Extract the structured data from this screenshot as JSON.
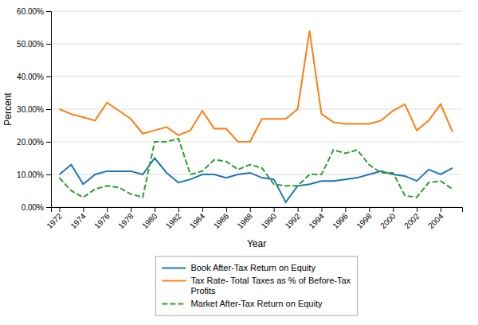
{
  "chart_data": {
    "type": "line",
    "xlabel": "Year",
    "ylabel": "Percent",
    "x": [
      1972,
      1973,
      1974,
      1975,
      1976,
      1977,
      1978,
      1979,
      1980,
      1981,
      1982,
      1983,
      1984,
      1985,
      1986,
      1987,
      1988,
      1989,
      1990,
      1991,
      1992,
      1993,
      1994,
      1995,
      1996,
      1997,
      1998,
      1999,
      2000,
      2001,
      2002,
      2003,
      2004,
      2005
    ],
    "series": [
      {
        "name": "Book After-Tax Return on Equity",
        "line_style": "solid",
        "values": [
          0.1,
          0.13,
          0.07,
          0.1,
          0.11,
          0.11,
          0.11,
          0.1,
          0.15,
          0.105,
          0.075,
          0.085,
          0.1,
          0.1,
          0.09,
          0.1,
          0.105,
          0.09,
          0.085,
          0.015,
          0.065,
          0.07,
          0.08,
          0.08,
          0.085,
          0.09,
          0.1,
          0.11,
          0.1,
          0.095,
          0.08,
          0.115,
          0.1,
          0.12
        ]
      },
      {
        "name": "Tax Rate- Total Taxes as % of Before-Tax\nProfits",
        "line_style": "solid",
        "values": [
          0.3,
          0.285,
          0.275,
          0.265,
          0.32,
          0.295,
          0.27,
          0.225,
          0.235,
          0.245,
          0.22,
          0.235,
          0.295,
          0.24,
          0.24,
          0.2,
          0.2,
          0.27,
          0.27,
          0.27,
          0.3,
          0.54,
          0.285,
          0.26,
          0.255,
          0.255,
          0.255,
          0.265,
          0.295,
          0.315,
          0.235,
          0.265,
          0.315,
          0.23
        ]
      },
      {
        "name": "Market After-Tax Return on Equity",
        "line_style": "dashed",
        "values": [
          0.09,
          0.05,
          0.03,
          0.055,
          0.065,
          0.06,
          0.04,
          0.03,
          0.2,
          0.2,
          0.21,
          0.1,
          0.11,
          0.145,
          0.14,
          0.115,
          0.13,
          0.12,
          0.07,
          0.065,
          0.065,
          0.1,
          0.1,
          0.175,
          0.165,
          0.175,
          0.13,
          0.105,
          0.105,
          0.035,
          0.03,
          0.075,
          0.08,
          0.055
        ]
      }
    ],
    "xlim": [
      1971.3,
      2005.8
    ],
    "xticks": [
      1972,
      1974,
      1976,
      1978,
      1980,
      1982,
      1984,
      1986,
      1988,
      1990,
      1992,
      1994,
      1996,
      1998,
      2000,
      2002,
      2004
    ],
    "ylim": [
      0.0,
      0.6
    ],
    "yticks": [
      {
        "value": 0.0,
        "label": "0.00%"
      },
      {
        "value": 0.1,
        "label": "10.00%"
      },
      {
        "value": 0.2,
        "label": "20.00%"
      },
      {
        "value": 0.3,
        "label": "30.00%"
      },
      {
        "value": 0.4,
        "label": "40.00%"
      },
      {
        "value": 0.5,
        "label": "50.00%"
      },
      {
        "value": 0.6,
        "label": "60.00%"
      }
    ],
    "grid": true,
    "legend": "bottom"
  }
}
